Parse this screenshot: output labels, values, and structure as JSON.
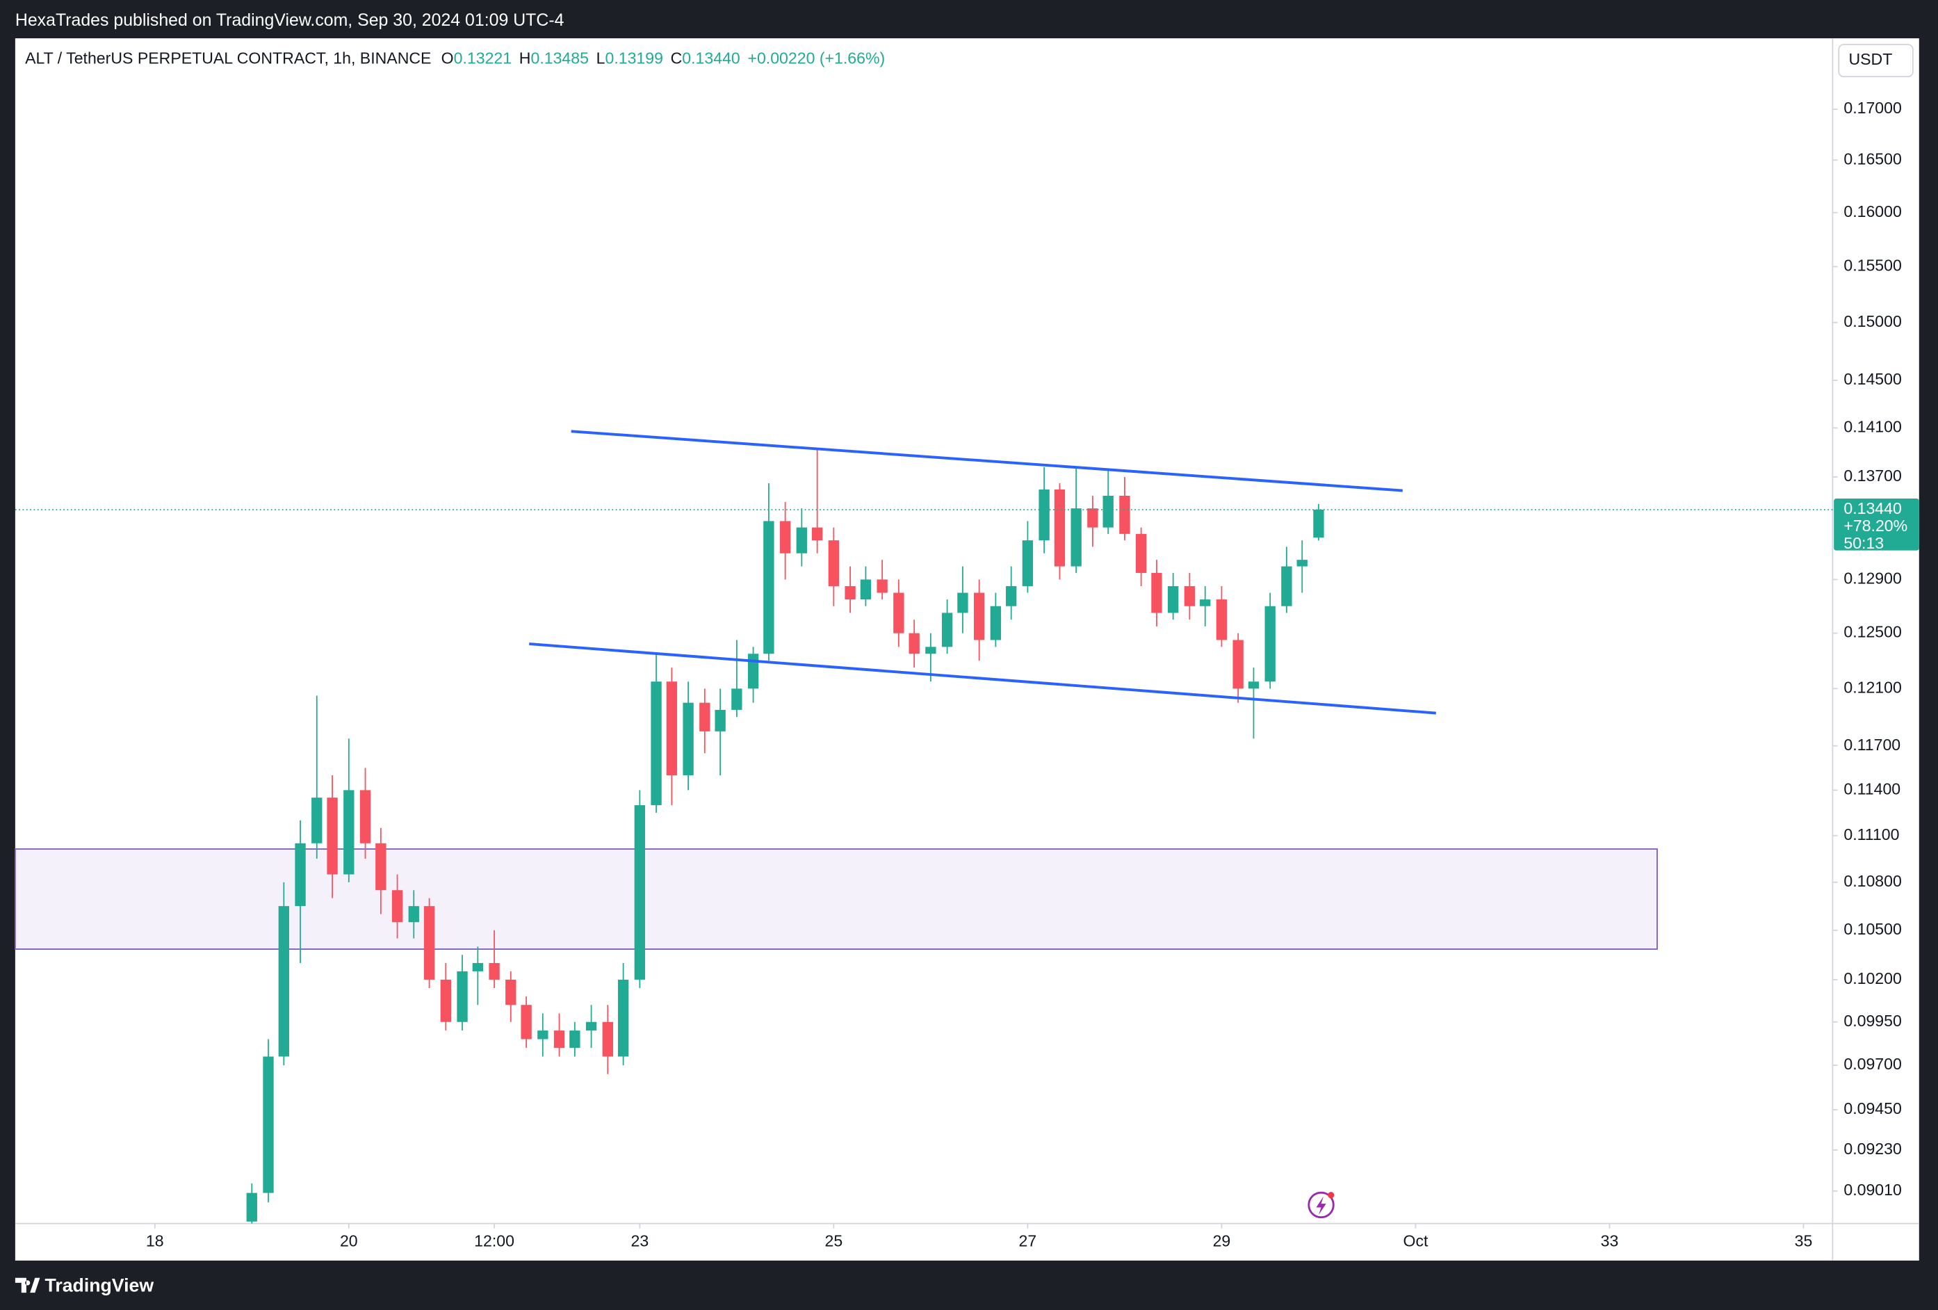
{
  "header": {
    "publisher": "HexaTrades published on TradingView.com, Sep 30, 2024 01:09 UTC-4",
    "symbol": "ALT / TetherUS PERPETUAL CONTRACT, 1h, BINANCE",
    "ohlc": [
      {
        "key": "O",
        "value": "0.13221"
      },
      {
        "key": "H",
        "value": "0.13485"
      },
      {
        "key": "L",
        "value": "0.13199"
      },
      {
        "key": "C",
        "value": "0.13440"
      }
    ],
    "change": "+0.00220 (+1.66%)"
  },
  "footer": {
    "brand": "TradingView"
  },
  "chart_data": {
    "type": "candlestick",
    "currency": "USDT",
    "log_scale": true,
    "grid": false,
    "up_color": "#22ab94",
    "down_color": "#f7525f",
    "x": [
      19,
      19.17,
      19.33,
      19.5,
      19.67,
      19.83,
      20,
      20.17,
      20.33,
      20.5,
      20.67,
      20.83,
      21,
      21.17,
      21.33,
      21.5,
      21.67,
      21.83,
      22,
      22.17,
      22.33,
      22.5,
      22.67,
      22.83,
      23,
      23.17,
      23.33,
      23.5,
      23.67,
      23.83,
      24,
      24.17,
      24.33,
      24.5,
      24.67,
      24.83,
      25,
      25.17,
      25.33,
      25.5,
      25.67,
      25.83,
      26,
      26.17,
      26.33,
      26.5,
      26.67,
      26.83,
      27,
      27.17,
      27.33,
      27.5,
      27.67,
      27.83,
      28,
      28.17,
      28.33,
      28.5,
      28.67,
      28.83,
      29,
      29.17,
      29.33,
      29.5,
      29.67,
      29.83,
      30
    ],
    "open": [
      0.0885,
      0.09,
      0.0975,
      0.1065,
      0.1105,
      0.1135,
      0.1085,
      0.114,
      0.1105,
      0.1075,
      0.1055,
      0.1065,
      0.102,
      0.0995,
      0.1025,
      0.103,
      0.102,
      0.1005,
      0.0985,
      0.099,
      0.098,
      0.099,
      0.0995,
      0.0975,
      0.102,
      0.113,
      0.1215,
      0.115,
      0.12,
      0.118,
      0.1195,
      0.121,
      0.1235,
      0.1335,
      0.131,
      0.133,
      0.132,
      0.1285,
      0.1275,
      0.129,
      0.128,
      0.125,
      0.1235,
      0.124,
      0.1265,
      0.128,
      0.1245,
      0.127,
      0.1285,
      0.132,
      0.136,
      0.13,
      0.1345,
      0.133,
      0.1355,
      0.1325,
      0.1295,
      0.1265,
      0.1285,
      0.127,
      0.1275,
      0.1245,
      0.121,
      0.1215,
      0.127,
      0.13,
      0.13221
    ],
    "high": [
      0.0905,
      0.0985,
      0.108,
      0.112,
      0.1205,
      0.115,
      0.1175,
      0.1155,
      0.1115,
      0.1085,
      0.1075,
      0.107,
      0.103,
      0.1035,
      0.104,
      0.105,
      0.1025,
      0.101,
      0.1,
      0.1,
      0.0995,
      0.1005,
      0.1005,
      0.103,
      0.114,
      0.1235,
      0.1225,
      0.1215,
      0.121,
      0.121,
      0.1245,
      0.124,
      0.1365,
      0.135,
      0.1345,
      0.1392,
      0.133,
      0.13,
      0.13,
      0.1305,
      0.129,
      0.126,
      0.125,
      0.1275,
      0.13,
      0.129,
      0.128,
      0.13,
      0.1335,
      0.1378,
      0.1365,
      0.1378,
      0.1355,
      0.1375,
      0.137,
      0.133,
      0.1305,
      0.1295,
      0.1295,
      0.1285,
      0.1285,
      0.125,
      0.1225,
      0.128,
      0.1315,
      0.132,
      0.13485
    ],
    "low": [
      0.0884,
      0.0895,
      0.097,
      0.103,
      0.1095,
      0.107,
      0.108,
      0.1095,
      0.106,
      0.1045,
      0.1045,
      0.1015,
      0.099,
      0.099,
      0.1005,
      0.1015,
      0.0995,
      0.098,
      0.0975,
      0.0975,
      0.0975,
      0.098,
      0.0965,
      0.097,
      0.1015,
      0.1125,
      0.113,
      0.114,
      0.1165,
      0.115,
      0.119,
      0.12,
      0.123,
      0.129,
      0.13,
      0.131,
      0.127,
      0.1265,
      0.127,
      0.1275,
      0.124,
      0.1225,
      0.1215,
      0.1235,
      0.125,
      0.123,
      0.124,
      0.126,
      0.128,
      0.131,
      0.129,
      0.1295,
      0.1315,
      0.1325,
      0.132,
      0.1285,
      0.1255,
      0.126,
      0.126,
      0.1255,
      0.124,
      0.12,
      0.1175,
      0.121,
      0.1265,
      0.128,
      0.13199
    ],
    "close": [
      0.09,
      0.0975,
      0.1065,
      0.1105,
      0.1135,
      0.1085,
      0.114,
      0.1105,
      0.1075,
      0.1055,
      0.1065,
      0.102,
      0.0995,
      0.1025,
      0.103,
      0.102,
      0.1005,
      0.0985,
      0.099,
      0.098,
      0.099,
      0.0995,
      0.0975,
      0.102,
      0.113,
      0.1215,
      0.115,
      0.12,
      0.118,
      0.1195,
      0.121,
      0.1235,
      0.1335,
      0.131,
      0.133,
      0.132,
      0.1285,
      0.1275,
      0.129,
      0.128,
      0.125,
      0.1235,
      0.124,
      0.1265,
      0.128,
      0.1245,
      0.127,
      0.1285,
      0.132,
      0.136,
      0.13,
      0.1345,
      0.133,
      0.1355,
      0.1325,
      0.1295,
      0.1265,
      0.1285,
      0.127,
      0.1275,
      0.1245,
      0.121,
      0.1215,
      0.127,
      0.13,
      0.1305,
      0.1344
    ],
    "xlim": [
      16.56,
      35.3
    ],
    "xticks": [
      18,
      20,
      {
        "value": 21.5,
        "label": "12:00"
      },
      23,
      25,
      27,
      29,
      {
        "value": 31,
        "label": "Oct"
      },
      33,
      35
    ],
    "ylim": [
      0.0884,
      0.1771
    ],
    "yticks": [
      {
        "value": 0.17,
        "label": "0.17000"
      },
      {
        "value": 0.165,
        "label": "0.16500"
      },
      {
        "value": 0.16,
        "label": "0.16000"
      },
      {
        "value": 0.155,
        "label": "0.15500"
      },
      {
        "value": 0.15,
        "label": "0.15000"
      },
      {
        "value": 0.145,
        "label": "0.14500"
      },
      {
        "value": 0.141,
        "label": "0.14100"
      },
      {
        "value": 0.137,
        "label": "0.13700"
      },
      {
        "value": 0.129,
        "label": "0.12900"
      },
      {
        "value": 0.125,
        "label": "0.12500"
      },
      {
        "value": 0.121,
        "label": "0.12100"
      },
      {
        "value": 0.117,
        "label": "0.11700"
      },
      {
        "value": 0.114,
        "label": "0.11400"
      },
      {
        "value": 0.111,
        "label": "0.11100"
      },
      {
        "value": 0.108,
        "label": "0.10800"
      },
      {
        "value": 0.105,
        "label": "0.10500"
      },
      {
        "value": 0.102,
        "label": "0.10200"
      },
      {
        "value": 0.0995,
        "label": "0.09950"
      },
      {
        "value": 0.097,
        "label": "0.09700"
      },
      {
        "value": 0.0945,
        "label": "0.09450"
      },
      {
        "value": 0.0923,
        "label": "0.09230"
      },
      {
        "value": 0.0901,
        "label": "0.09010"
      }
    ],
    "last_price": {
      "value": 0.1344,
      "label": "0.13440",
      "change": "+78.20%",
      "countdown": "50:13"
    }
  }
}
